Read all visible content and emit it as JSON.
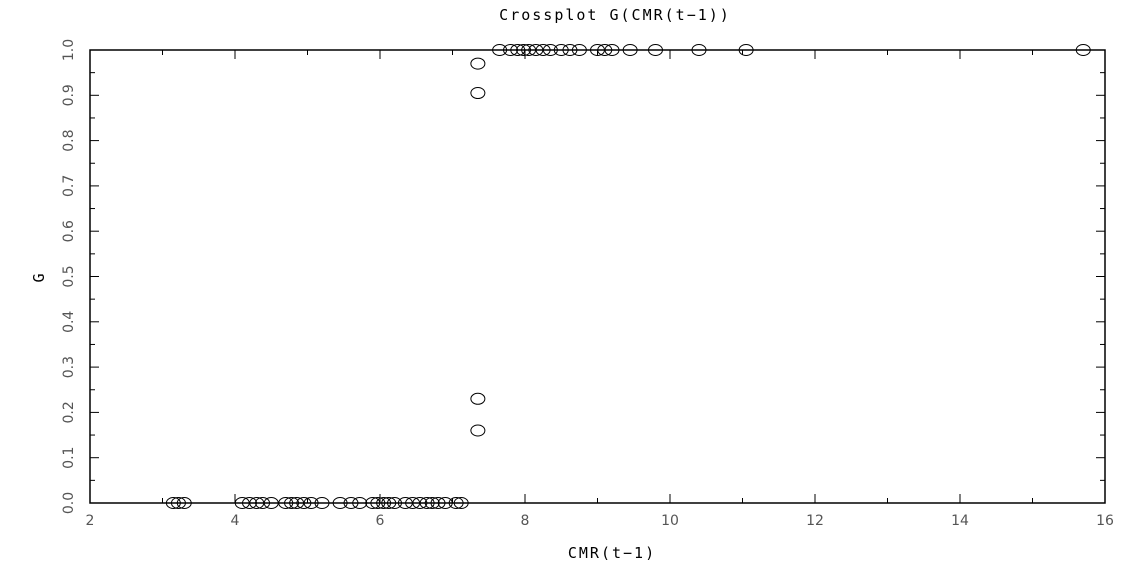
{
  "chart_data": {
    "type": "scatter",
    "title": "Crossplot G(CMR(t−1))",
    "xlabel": "CMR(t−1)",
    "ylabel": "G",
    "xlim": [
      2,
      16
    ],
    "ylim": [
      0,
      1
    ],
    "x_ticks": [
      2,
      4,
      6,
      8,
      10,
      12,
      14,
      16
    ],
    "y_ticks": [
      0.0,
      0.1,
      0.2,
      0.3,
      0.4,
      0.5,
      0.6,
      0.7,
      0.8,
      0.9,
      1.0
    ],
    "x_tick_labels": [
      "2",
      "4",
      "6",
      "8",
      "10",
      "12",
      "14",
      "16"
    ],
    "y_tick_labels": [
      "0.0",
      "0.1",
      "0.2",
      "0.3",
      "0.4",
      "0.5",
      "0.6",
      "0.7",
      "0.8",
      "0.9",
      "1.0"
    ],
    "grid": false,
    "marker": "open-circle",
    "points": [
      {
        "x": 3.15,
        "y": 0.0
      },
      {
        "x": 3.22,
        "y": 0.0
      },
      {
        "x": 3.3,
        "y": 0.0
      },
      {
        "x": 4.1,
        "y": 0.0
      },
      {
        "x": 4.2,
        "y": 0.0
      },
      {
        "x": 4.3,
        "y": 0.0
      },
      {
        "x": 4.38,
        "y": 0.0
      },
      {
        "x": 4.5,
        "y": 0.0
      },
      {
        "x": 4.7,
        "y": 0.0
      },
      {
        "x": 4.78,
        "y": 0.0
      },
      {
        "x": 4.85,
        "y": 0.0
      },
      {
        "x": 4.95,
        "y": 0.0
      },
      {
        "x": 5.05,
        "y": 0.0
      },
      {
        "x": 5.2,
        "y": 0.0
      },
      {
        "x": 5.45,
        "y": 0.0
      },
      {
        "x": 5.6,
        "y": 0.0
      },
      {
        "x": 5.72,
        "y": 0.0
      },
      {
        "x": 5.9,
        "y": 0.0
      },
      {
        "x": 5.97,
        "y": 0.0
      },
      {
        "x": 6.05,
        "y": 0.0
      },
      {
        "x": 6.12,
        "y": 0.0
      },
      {
        "x": 6.2,
        "y": 0.0
      },
      {
        "x": 6.35,
        "y": 0.0
      },
      {
        "x": 6.45,
        "y": 0.0
      },
      {
        "x": 6.55,
        "y": 0.0
      },
      {
        "x": 6.65,
        "y": 0.0
      },
      {
        "x": 6.72,
        "y": 0.0
      },
      {
        "x": 6.8,
        "y": 0.0
      },
      {
        "x": 6.9,
        "y": 0.0
      },
      {
        "x": 7.05,
        "y": 0.0
      },
      {
        "x": 7.12,
        "y": 0.0
      },
      {
        "x": 7.35,
        "y": 0.16
      },
      {
        "x": 7.35,
        "y": 0.23
      },
      {
        "x": 7.35,
        "y": 0.905
      },
      {
        "x": 7.35,
        "y": 0.97
      },
      {
        "x": 7.65,
        "y": 1.0
      },
      {
        "x": 7.8,
        "y": 1.0
      },
      {
        "x": 7.9,
        "y": 1.0
      },
      {
        "x": 7.98,
        "y": 1.0
      },
      {
        "x": 8.05,
        "y": 1.0
      },
      {
        "x": 8.15,
        "y": 1.0
      },
      {
        "x": 8.25,
        "y": 1.0
      },
      {
        "x": 8.35,
        "y": 1.0
      },
      {
        "x": 8.5,
        "y": 1.0
      },
      {
        "x": 8.62,
        "y": 1.0
      },
      {
        "x": 8.75,
        "y": 1.0
      },
      {
        "x": 9.0,
        "y": 1.0
      },
      {
        "x": 9.1,
        "y": 1.0
      },
      {
        "x": 9.2,
        "y": 1.0
      },
      {
        "x": 9.45,
        "y": 1.0
      },
      {
        "x": 9.8,
        "y": 1.0
      },
      {
        "x": 10.4,
        "y": 1.0
      },
      {
        "x": 11.05,
        "y": 1.0
      },
      {
        "x": 15.7,
        "y": 1.0
      }
    ]
  }
}
